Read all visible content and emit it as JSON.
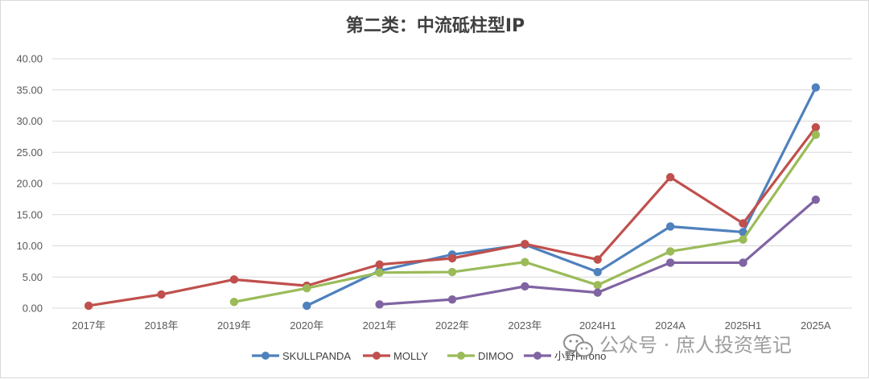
{
  "chart_data": {
    "type": "line",
    "title": "第二类：中流砥柱型IP",
    "categories": [
      "2017年",
      "2018年",
      "2019年",
      "2020年",
      "2021年",
      "2022年",
      "2023年",
      "2024H1",
      "2024A",
      "2025H1",
      "2025A"
    ],
    "ylim": [
      0,
      40
    ],
    "yticks": [
      "0.00",
      "5.00",
      "10.00",
      "15.00",
      "20.00",
      "25.00",
      "30.00",
      "35.00",
      "40.00"
    ],
    "grid": true,
    "legend_position": "bottom",
    "series": [
      {
        "name": "SKULLPANDA",
        "color": "#4f81bd",
        "values": [
          null,
          null,
          null,
          0.4,
          6.0,
          8.6,
          10.2,
          5.8,
          13.1,
          12.2,
          35.4
        ]
      },
      {
        "name": "MOLLY",
        "color": "#c0504d",
        "values": [
          0.4,
          2.2,
          4.6,
          3.6,
          7.0,
          8.0,
          10.3,
          7.8,
          21.0,
          13.6,
          29.0
        ]
      },
      {
        "name": "DIMOO",
        "color": "#9bbb59",
        "values": [
          null,
          null,
          1.0,
          3.2,
          5.7,
          5.8,
          7.4,
          3.7,
          9.1,
          11.0,
          27.8
        ]
      },
      {
        "name": "小野Hirono",
        "color": "#8064a2",
        "values": [
          null,
          null,
          null,
          null,
          0.6,
          1.4,
          3.5,
          2.5,
          7.3,
          7.3,
          17.4
        ]
      }
    ]
  },
  "watermark": {
    "text": "公众号 · 庶人投资笔记",
    "icon": "wechat-icon"
  }
}
